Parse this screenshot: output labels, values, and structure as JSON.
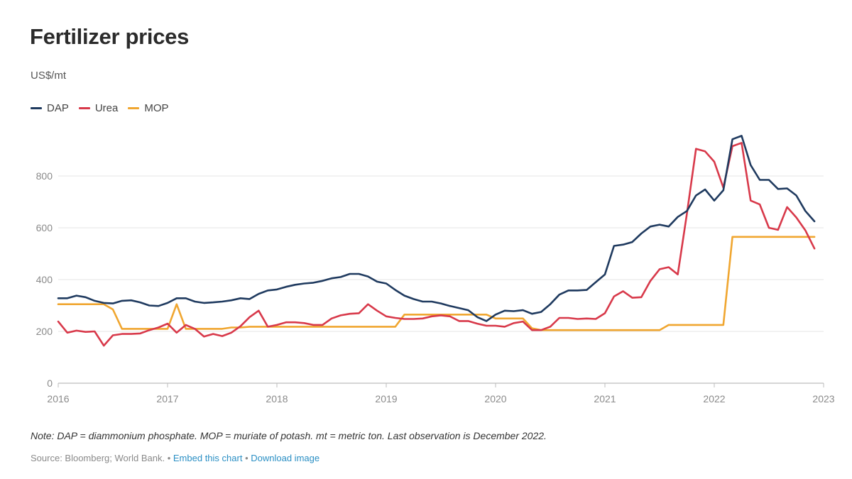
{
  "header": {
    "title": "Fertilizer prices",
    "unit": "US$/mt"
  },
  "footer": {
    "note": "Note: DAP = diammonium phosphate. MOP = muriate of potash. mt = metric ton. Last observation is December 2022.",
    "source": "Source: Bloomberg; World Bank.",
    "separator": "•",
    "embed_link": "Embed this chart",
    "download_link": "Download image"
  },
  "chart_data": {
    "type": "line",
    "title": "Fertilizer prices",
    "ylabel": "US$/mt",
    "xlim": [
      2016.0,
      2023.0
    ],
    "ylim": [
      0,
      1000
    ],
    "x_ticks": [
      "2016",
      "2017",
      "2018",
      "2019",
      "2020",
      "2021",
      "2022",
      "2023"
    ],
    "y_ticks": [
      "0",
      "200",
      "400",
      "600",
      "800"
    ],
    "grid": true,
    "legend_position": "top-left",
    "x_start": 2016.0,
    "x_step": 0.08333,
    "series": [
      {
        "name": "DAP",
        "color": "#1f3a5f",
        "values": [
          328,
          328,
          338,
          332,
          318,
          310,
          308,
          318,
          320,
          312,
          300,
          298,
          310,
          328,
          328,
          315,
          310,
          312,
          315,
          320,
          328,
          325,
          345,
          358,
          362,
          372,
          380,
          385,
          388,
          395,
          405,
          410,
          422,
          422,
          412,
          392,
          385,
          360,
          338,
          325,
          315,
          315,
          308,
          298,
          290,
          282,
          255,
          240,
          265,
          280,
          278,
          282,
          268,
          275,
          305,
          342,
          358,
          358,
          360,
          390,
          420,
          530,
          535,
          545,
          578,
          605,
          612,
          605,
          642,
          665,
          725,
          748,
          705,
          745,
          942,
          955,
          842,
          785,
          785,
          750,
          752,
          725,
          665,
          625
        ]
      },
      {
        "name": "Urea",
        "color": "#d8394a",
        "values": [
          238,
          195,
          203,
          198,
          200,
          145,
          185,
          190,
          190,
          192,
          205,
          215,
          230,
          195,
          225,
          210,
          180,
          190,
          182,
          195,
          220,
          255,
          280,
          218,
          225,
          235,
          235,
          232,
          225,
          225,
          250,
          262,
          268,
          270,
          305,
          280,
          258,
          252,
          248,
          248,
          250,
          258,
          262,
          258,
          240,
          240,
          230,
          222,
          222,
          218,
          232,
          238,
          205,
          205,
          218,
          252,
          252,
          248,
          250,
          248,
          270,
          335,
          355,
          330,
          332,
          395,
          440,
          448,
          420,
          655,
          905,
          895,
          855,
          755,
          915,
          928,
          705,
          690,
          600,
          592,
          680,
          640,
          590,
          520
        ]
      },
      {
        "name": "MOP",
        "color": "#f0a630",
        "values": [
          305,
          305,
          305,
          305,
          305,
          305,
          285,
          210,
          210,
          210,
          210,
          210,
          210,
          305,
          210,
          210,
          210,
          210,
          210,
          215,
          215,
          218,
          218,
          218,
          218,
          218,
          218,
          218,
          218,
          218,
          218,
          218,
          218,
          218,
          218,
          218,
          218,
          218,
          265,
          265,
          265,
          265,
          265,
          265,
          265,
          265,
          265,
          265,
          250,
          250,
          250,
          250,
          212,
          205,
          205,
          205,
          205,
          205,
          205,
          205,
          205,
          205,
          205,
          205,
          205,
          205,
          205,
          225,
          225,
          225,
          225,
          225,
          225,
          225,
          565,
          565,
          565,
          565,
          565,
          565,
          565,
          565,
          565,
          565
        ]
      }
    ]
  }
}
